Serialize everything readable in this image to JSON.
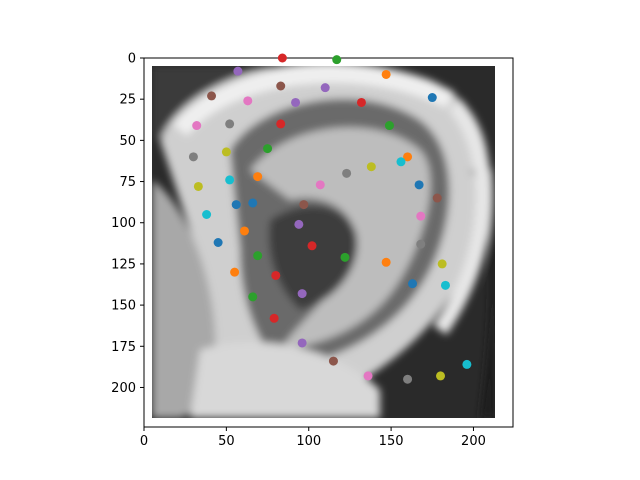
{
  "chart_data": {
    "type": "scatter",
    "title": "",
    "xlabel": "",
    "ylabel": "",
    "xlim": [
      0,
      224
    ],
    "ylim": [
      224,
      0
    ],
    "y_inverted": true,
    "grid": false,
    "legend": "none",
    "background_image": "grayscale close-up photo of a human ear",
    "x_ticks": [
      0,
      50,
      100,
      150,
      200
    ],
    "y_ticks": [
      0,
      25,
      50,
      75,
      100,
      125,
      150,
      175,
      200
    ],
    "x_tick_labels": [
      "0",
      "50",
      "100",
      "150",
      "200"
    ],
    "y_tick_labels": [
      "0",
      "25",
      "50",
      "75",
      "100",
      "125",
      "150",
      "175",
      "200"
    ],
    "points": [
      {
        "x": 84,
        "y": 0,
        "color": "#d62728"
      },
      {
        "x": 117,
        "y": 1,
        "color": "#2ca02c"
      },
      {
        "x": 57,
        "y": 8,
        "color": "#9467bd"
      },
      {
        "x": 147,
        "y": 10,
        "color": "#ff7f0e"
      },
      {
        "x": 83,
        "y": 17,
        "color": "#8c564b"
      },
      {
        "x": 110,
        "y": 18,
        "color": "#9467bd"
      },
      {
        "x": 41,
        "y": 23,
        "color": "#8c564b"
      },
      {
        "x": 175,
        "y": 24,
        "color": "#1f77b4"
      },
      {
        "x": 63,
        "y": 26,
        "color": "#e377c2"
      },
      {
        "x": 92,
        "y": 27,
        "color": "#9467bd"
      },
      {
        "x": 132,
        "y": 27,
        "color": "#d62728"
      },
      {
        "x": 32,
        "y": 41,
        "color": "#e377c2"
      },
      {
        "x": 52,
        "y": 40,
        "color": "#7f7f7f"
      },
      {
        "x": 83,
        "y": 40,
        "color": "#d62728"
      },
      {
        "x": 149,
        "y": 41,
        "color": "#2ca02c"
      },
      {
        "x": 30,
        "y": 60,
        "color": "#7f7f7f"
      },
      {
        "x": 50,
        "y": 57,
        "color": "#bcbd22"
      },
      {
        "x": 75,
        "y": 55,
        "color": "#2ca02c"
      },
      {
        "x": 160,
        "y": 60,
        "color": "#ff7f0e"
      },
      {
        "x": 156,
        "y": 63,
        "color": "#17becf"
      },
      {
        "x": 138,
        "y": 66,
        "color": "#bcbd22"
      },
      {
        "x": 123,
        "y": 70,
        "color": "#7f7f7f"
      },
      {
        "x": 69,
        "y": 72,
        "color": "#ff7f0e"
      },
      {
        "x": 52,
        "y": 74,
        "color": "#17becf"
      },
      {
        "x": 33,
        "y": 78,
        "color": "#bcbd22"
      },
      {
        "x": 107,
        "y": 77,
        "color": "#e377c2"
      },
      {
        "x": 167,
        "y": 77,
        "color": "#1f77b4"
      },
      {
        "x": 178,
        "y": 85,
        "color": "#8c564b"
      },
      {
        "x": 56,
        "y": 89,
        "color": "#1f77b4"
      },
      {
        "x": 66,
        "y": 88,
        "color": "#1f77b4"
      },
      {
        "x": 97,
        "y": 89,
        "color": "#8c564b"
      },
      {
        "x": 38,
        "y": 95,
        "color": "#17becf"
      },
      {
        "x": 168,
        "y": 96,
        "color": "#e377c2"
      },
      {
        "x": 94,
        "y": 101,
        "color": "#9467bd"
      },
      {
        "x": 61,
        "y": 105,
        "color": "#ff7f0e"
      },
      {
        "x": 45,
        "y": 112,
        "color": "#1f77b4"
      },
      {
        "x": 102,
        "y": 114,
        "color": "#d62728"
      },
      {
        "x": 168,
        "y": 113,
        "color": "#7f7f7f"
      },
      {
        "x": 69,
        "y": 120,
        "color": "#2ca02c"
      },
      {
        "x": 122,
        "y": 121,
        "color": "#2ca02c"
      },
      {
        "x": 147,
        "y": 124,
        "color": "#ff7f0e"
      },
      {
        "x": 181,
        "y": 125,
        "color": "#bcbd22"
      },
      {
        "x": 55,
        "y": 130,
        "color": "#ff7f0e"
      },
      {
        "x": 80,
        "y": 132,
        "color": "#d62728"
      },
      {
        "x": 163,
        "y": 137,
        "color": "#1f77b4"
      },
      {
        "x": 183,
        "y": 138,
        "color": "#17becf"
      },
      {
        "x": 66,
        "y": 145,
        "color": "#2ca02c"
      },
      {
        "x": 96,
        "y": 143,
        "color": "#9467bd"
      },
      {
        "x": 79,
        "y": 158,
        "color": "#d62728"
      },
      {
        "x": 96,
        "y": 173,
        "color": "#9467bd"
      },
      {
        "x": 115,
        "y": 184,
        "color": "#8c564b"
      },
      {
        "x": 196,
        "y": 186,
        "color": "#17becf"
      },
      {
        "x": 136,
        "y": 193,
        "color": "#e377c2"
      },
      {
        "x": 160,
        "y": 195,
        "color": "#7f7f7f"
      },
      {
        "x": 180,
        "y": 193,
        "color": "#bcbd22"
      }
    ]
  }
}
